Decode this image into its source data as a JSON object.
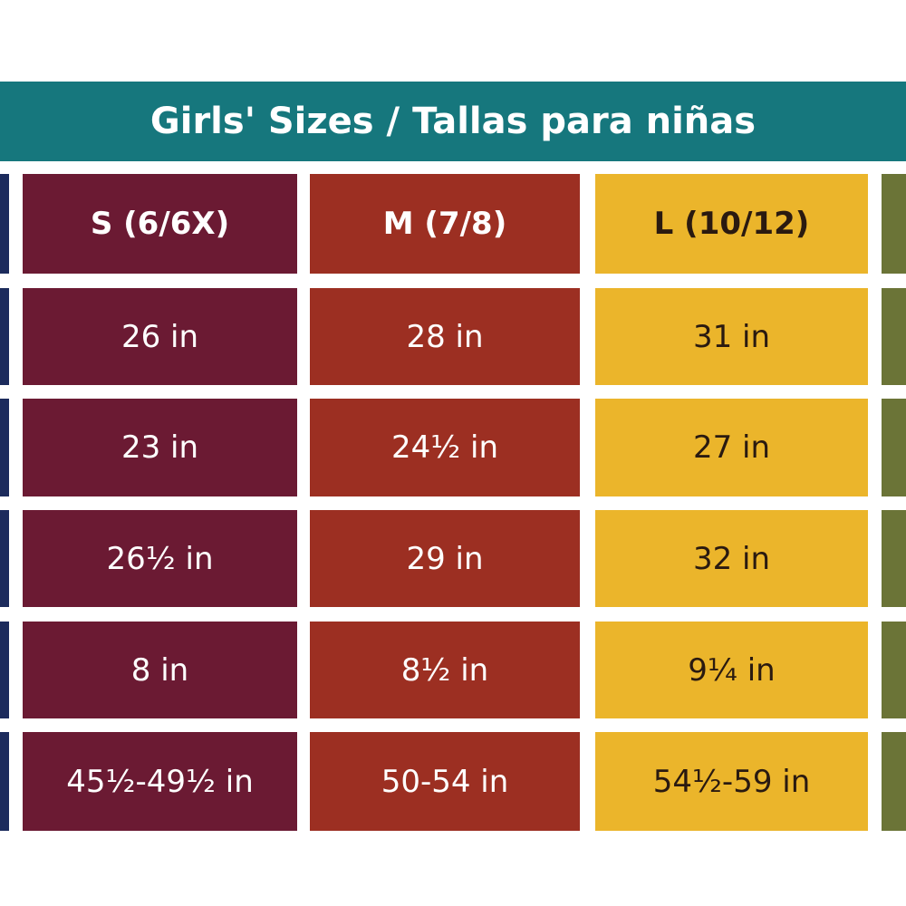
{
  "header": {
    "title": "Girls' Sizes / Tallas para niñas"
  },
  "table": {
    "columns": [
      "S (6/6X)",
      "M (7/8)",
      "L (10/12)"
    ],
    "rows": [
      [
        "26 in",
        "28 in",
        "31 in"
      ],
      [
        "23 in",
        "24½ in",
        "27 in"
      ],
      [
        "26½ in",
        "29 in",
        "32 in"
      ],
      [
        "8 in",
        "8½ in",
        "9¼ in"
      ],
      [
        "45½-49½ in",
        "50-54 in",
        "54½-59 in"
      ]
    ]
  }
}
